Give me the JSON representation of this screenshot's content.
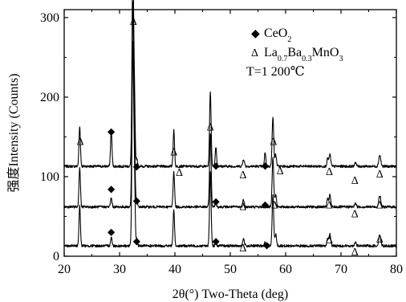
{
  "chart_data": {
    "type": "line",
    "xlabel": "2θ(°) Two-Theta (deg)",
    "ylabel": "强度Intensity (Counts)",
    "xlim": [
      20,
      80
    ],
    "ylim": [
      0,
      310
    ],
    "x_ticks": [
      20,
      30,
      40,
      50,
      60,
      70,
      80
    ],
    "y_ticks": [
      0,
      100,
      200,
      300
    ],
    "grid": false,
    "legend_position": "top-right",
    "legend": [
      {
        "marker": "◆",
        "parts": [
          {
            "t": "CeO",
            "s": "n"
          },
          {
            "t": "2",
            "s": "sub"
          }
        ]
      },
      {
        "marker": "Δ",
        "parts": [
          {
            "t": "La",
            "s": "n"
          },
          {
            "t": "0.7",
            "s": "sub"
          },
          {
            "t": "Ba",
            "s": "n"
          },
          {
            "t": "0.3",
            "s": "sub"
          },
          {
            "t": "MnO",
            "s": "n"
          },
          {
            "t": "3",
            "s": "sub"
          }
        ]
      },
      {
        "marker": "",
        "parts": [
          {
            "t": "T=1 200℃",
            "s": "n"
          }
        ]
      }
    ],
    "peaks": [
      {
        "x": 22.8,
        "h": 50,
        "w": 0.13
      },
      {
        "x": 28.5,
        "h": 45,
        "w": 0.13,
        "decay": 0.25
      },
      {
        "x": 32.4,
        "h": 255,
        "w": 0.15
      },
      {
        "x": 32.7,
        "h": 75,
        "w": 0.12
      },
      {
        "x": 33.1,
        "h": 10,
        "w": 0.12
      },
      {
        "x": 39.8,
        "h": 45,
        "w": 0.13
      },
      {
        "x": 46.4,
        "h": 93,
        "w": 0.14
      },
      {
        "x": 47.4,
        "h": 25,
        "w": 0.12,
        "decay": 0.25
      },
      {
        "x": 52.4,
        "h": 9,
        "w": 0.15
      },
      {
        "x": 56.3,
        "h": 18,
        "w": 0.12,
        "decay": 0.25
      },
      {
        "x": 57.7,
        "h": 63,
        "w": 0.14
      },
      {
        "x": 58.2,
        "h": 15,
        "w": 0.14
      },
      {
        "x": 67.6,
        "h": 10,
        "w": 0.14
      },
      {
        "x": 68.0,
        "h": 15,
        "w": 0.14
      },
      {
        "x": 72.6,
        "h": 5,
        "w": 0.15
      },
      {
        "x": 77.0,
        "h": 14,
        "w": 0.18
      }
    ],
    "series": [
      {
        "baseline": 113
      },
      {
        "baseline": 62
      },
      {
        "baseline": 13
      }
    ],
    "markers": [
      {
        "sym": "Δ",
        "x": 22.9,
        "y": 145
      },
      {
        "sym": "◆",
        "x": 28.5,
        "y": 158
      },
      {
        "sym": "Δ",
        "x": 32.5,
        "y": 296
      },
      {
        "sym": "◆",
        "x": 33.1,
        "y": 114
      },
      {
        "sym": "Δ",
        "x": 39.8,
        "y": 132
      },
      {
        "sym": "Δ",
        "x": 40.8,
        "y": 106
      },
      {
        "sym": "Δ",
        "x": 46.4,
        "y": 163
      },
      {
        "sym": "◆",
        "x": 47.4,
        "y": 115
      },
      {
        "sym": "Δ",
        "x": 52.3,
        "y": 103
      },
      {
        "sym": "◆",
        "x": 56.3,
        "y": 115
      },
      {
        "sym": "Δ",
        "x": 57.8,
        "y": 145
      },
      {
        "sym": "Δ",
        "x": 59.0,
        "y": 108
      },
      {
        "sym": "Δ",
        "x": 67.9,
        "y": 107
      },
      {
        "sym": "Δ",
        "x": 72.5,
        "y": 96
      },
      {
        "sym": "Δ",
        "x": 77.0,
        "y": 104
      },
      {
        "sym": "◆",
        "x": 28.5,
        "y": 86
      },
      {
        "sym": "◆",
        "x": 33.1,
        "y": 71
      },
      {
        "sym": "◆",
        "x": 47.4,
        "y": 70
      },
      {
        "sym": "Δ",
        "x": 52.3,
        "y": 63
      },
      {
        "sym": "◆",
        "x": 56.3,
        "y": 66
      },
      {
        "sym": "Δ",
        "x": 58.0,
        "y": 65
      },
      {
        "sym": "Δ",
        "x": 67.9,
        "y": 65
      },
      {
        "sym": "Δ",
        "x": 72.5,
        "y": 54
      },
      {
        "sym": "Δ",
        "x": 77.0,
        "y": 65
      },
      {
        "sym": "◆",
        "x": 28.5,
        "y": 32
      },
      {
        "sym": "◆",
        "x": 33.1,
        "y": 20
      },
      {
        "sym": "◆",
        "x": 47.4,
        "y": 20
      },
      {
        "sym": "Δ",
        "x": 52.3,
        "y": 11
      },
      {
        "sym": "◆",
        "x": 56.6,
        "y": 15
      },
      {
        "sym": "Δ",
        "x": 67.9,
        "y": 21
      },
      {
        "sym": "Δ",
        "x": 72.5,
        "y": 6
      },
      {
        "sym": "Δ",
        "x": 77.0,
        "y": 22
      }
    ]
  }
}
